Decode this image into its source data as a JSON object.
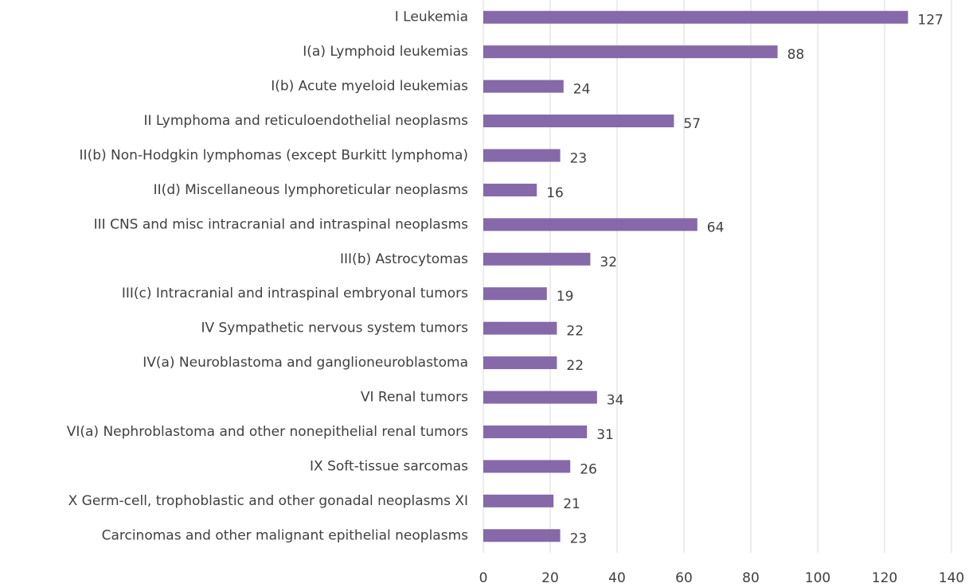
{
  "chart_data": {
    "type": "bar",
    "orientation": "horizontal",
    "categories": [
      "I Leukemia",
      "I(a) Lymphoid leukemias",
      "I(b) Acute myeloid leukemias",
      "II Lymphoma and reticuloendothelial neoplasms",
      "II(b) Non-Hodgkin lymphomas (except Burkitt lymphoma)",
      "II(d) Miscellaneous lymphoreticular neoplasms",
      "III CNS and misc intracranial and intraspinal neoplasms",
      "III(b) Astrocytomas",
      "III(c) Intracranial and intraspinal embryonal tumors",
      "IV Sympathetic nervous system tumors",
      "IV(a) Neuroblastoma and ganglioneuroblastoma",
      "VI Renal tumors",
      "VI(a) Nephroblastoma and other nonepithelial renal tumors",
      "IX Soft-tissue sarcomas",
      "X Germ-cell, trophoblastic and other gonadal neoplasms XI",
      "Carcinomas and other malignant epithelial neoplasms"
    ],
    "values": [
      127,
      88,
      24,
      57,
      23,
      16,
      64,
      32,
      19,
      22,
      22,
      34,
      31,
      26,
      21,
      23
    ],
    "color": "#8569a8",
    "xlim": [
      0,
      140
    ],
    "xticks": [
      0,
      20,
      40,
      60,
      80,
      100,
      120,
      140
    ],
    "grid": true
  }
}
